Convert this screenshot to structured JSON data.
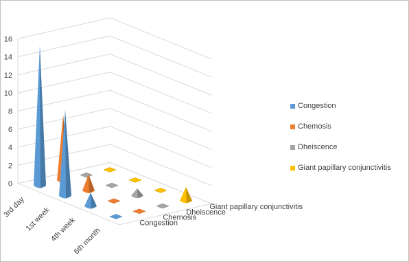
{
  "chart_data": {
    "type": "bar",
    "variant": "3d-cone",
    "categories": [
      "3rd day",
      "1st week",
      "4th week",
      "6th month"
    ],
    "series": [
      {
        "name": "Congestion",
        "color": "#5b9bd5",
        "values": [
          15.5,
          9.5,
          1.5,
          0.3
        ]
      },
      {
        "name": "Chemosis",
        "color": "#ed7d31",
        "values": [
          7.2,
          1.8,
          0.2,
          0.2
        ]
      },
      {
        "name": "Dheiscence",
        "color": "#a5a5a5",
        "values": [
          0.3,
          0.3,
          0.8,
          0.3
        ]
      },
      {
        "name": "Giant papillary conjunctivitis",
        "color": "#ffc000",
        "values": [
          0.2,
          0.2,
          0.2,
          1.5
        ]
      }
    ],
    "ylim": [
      0,
      16
    ],
    "yticks": [
      "0",
      "2",
      "4",
      "6",
      "8",
      "10",
      "12",
      "14",
      "16"
    ],
    "grid": true,
    "legend_position": "right"
  }
}
